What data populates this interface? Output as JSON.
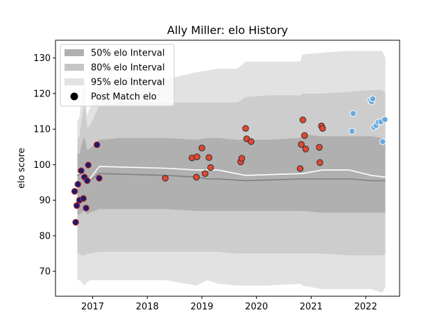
{
  "chart_data": {
    "type": "scatter",
    "title": "Ally Miller: elo History",
    "xlabel": "",
    "ylabel": "elo score",
    "xlim": [
      2016.32,
      2022.62
    ],
    "ylim": [
      63.0,
      135.0
    ],
    "x_ticks": [
      2017,
      2018,
      2019,
      2020,
      2021,
      2022
    ],
    "x_tick_labels": [
      "2017",
      "2018",
      "2019",
      "2020",
      "2021",
      "2022"
    ],
    "y_ticks": [
      70,
      80,
      90,
      100,
      110,
      120,
      130
    ],
    "y_tick_labels": [
      "70",
      "80",
      "90",
      "100",
      "110",
      "120",
      "130"
    ],
    "grid": false,
    "legend": {
      "placement": "top-left",
      "entries": [
        {
          "label": "50% elo Interval",
          "color": "#b0b0b0",
          "kind": "patch"
        },
        {
          "label": "80% elo Interval",
          "color": "#c6c6c6",
          "kind": "patch"
        },
        {
          "label": "95% elo Interval",
          "color": "#e2e2e2",
          "kind": "patch"
        },
        {
          "label": "Post Match elo",
          "color": "#000000",
          "kind": "marker"
        }
      ]
    },
    "band_x": [
      2016.72,
      2016.76,
      2016.8,
      2016.85,
      2016.9,
      2016.95,
      2017.12,
      2017.5,
      2018.34,
      2018.9,
      2019.1,
      2019.3,
      2019.65,
      2019.8,
      2020.2,
      2020.8,
      2020.84,
      2021.2,
      2021.7,
      2022.1,
      2022.3,
      2022.36
    ],
    "bands": [
      {
        "name": "95% elo Interval",
        "color": "#e2e2e2",
        "lower": [
          67.5,
          67.5,
          67.0,
          66.0,
          67.0,
          67.5,
          67.5,
          67.5,
          67.5,
          66.0,
          67.5,
          66.5,
          66.0,
          66.0,
          66.0,
          66.5,
          66.0,
          65.0,
          65.0,
          65.0,
          64.0,
          65.5
        ],
        "upper": [
          112.0,
          113.5,
          120.0,
          125.0,
          114.0,
          116.0,
          123.0,
          124.5,
          124.0,
          126.0,
          126.5,
          127.0,
          127.0,
          129.0,
          129.0,
          129.0,
          131.0,
          131.5,
          132.0,
          132.0,
          132.0,
          130.0
        ]
      },
      {
        "name": "80% elo Interval",
        "color": "#cdcdcd",
        "lower": [
          75.0,
          75.0,
          74.5,
          74.5,
          75.0,
          75.0,
          75.5,
          75.5,
          75.5,
          75.5,
          75.5,
          75.5,
          75.0,
          75.0,
          75.0,
          75.0,
          75.0,
          75.0,
          74.5,
          74.5,
          74.5,
          75.0
        ],
        "upper": [
          107.0,
          108.0,
          113.0,
          117.0,
          110.5,
          111.0,
          116.5,
          117.5,
          117.5,
          117.5,
          117.5,
          117.5,
          117.5,
          119.0,
          119.5,
          119.5,
          120.0,
          120.0,
          120.5,
          121.0,
          121.0,
          120.0
        ]
      },
      {
        "name": "50% elo Interval",
        "color": "#b0b0b0",
        "lower": [
          86.0,
          86.0,
          86.5,
          87.0,
          86.0,
          86.5,
          87.5,
          87.5,
          87.5,
          87.0,
          87.0,
          87.0,
          87.0,
          87.0,
          87.0,
          87.0,
          87.0,
          86.5,
          86.5,
          86.5,
          86.5,
          86.5
        ],
        "upper": [
          103.0,
          103.0,
          106.0,
          108.0,
          104.0,
          104.5,
          107.0,
          107.5,
          107.5,
          107.0,
          107.5,
          107.5,
          107.0,
          107.0,
          107.0,
          107.5,
          108.5,
          108.0,
          108.0,
          108.0,
          107.5,
          107.0
        ]
      }
    ],
    "lines": [
      {
        "name": "mean",
        "color": "#808080",
        "width": 1.6,
        "x": [
          2016.72,
          2016.8,
          2016.85,
          2016.95,
          2017.12,
          2018.34,
          2018.9,
          2019.1,
          2019.3,
          2019.8,
          2020.84,
          2021.2,
          2021.7,
          2022.1,
          2022.36
        ],
        "y": [
          97.0,
          97.5,
          96.0,
          95.5,
          97.5,
          97.0,
          96.5,
          96.0,
          96.0,
          95.5,
          96.0,
          96.0,
          96.0,
          95.5,
          95.5
        ]
      },
      {
        "name": "median",
        "color": "#ffffff",
        "width": 1.6,
        "x": [
          2016.72,
          2016.8,
          2016.85,
          2016.95,
          2017.12,
          2018.34,
          2018.9,
          2019.1,
          2019.3,
          2019.8,
          2020.84,
          2021.2,
          2021.7,
          2022.1,
          2022.36
        ],
        "y": [
          97.5,
          97.5,
          96.5,
          96.0,
          99.5,
          99.0,
          98.5,
          98.5,
          98.5,
          97.0,
          97.5,
          98.5,
          98.5,
          97.0,
          96.5
        ]
      }
    ],
    "series": [
      {
        "group": 1,
        "fill": "#1c1c6e",
        "edge": "#c82828",
        "x": [
          2016.67,
          2016.69,
          2016.71,
          2016.73,
          2016.76,
          2016.79,
          2016.83,
          2016.85,
          2016.88,
          2016.9,
          2016.92,
          2017.08,
          2017.12
        ],
        "y": [
          92.5,
          83.8,
          88.5,
          94.5,
          90.0,
          98.3,
          90.5,
          96.5,
          87.8,
          95.5,
          99.9,
          105.6,
          96.2
        ]
      },
      {
        "group": 2,
        "fill": "#e04830",
        "edge": "#303030",
        "x": [
          2018.33,
          2018.82,
          2018.9,
          2018.91,
          2019.0,
          2019.06,
          2019.13,
          2019.16,
          2019.71,
          2019.73,
          2019.8,
          2019.82,
          2019.9,
          2020.8,
          2020.82,
          2020.85,
          2020.88,
          2020.9,
          2021.15,
          2021.16,
          2021.19,
          2021.21
        ],
        "y": [
          96.2,
          101.9,
          96.5,
          102.2,
          104.7,
          97.5,
          102.0,
          99.2,
          100.8,
          101.8,
          110.2,
          107.3,
          106.5,
          98.9,
          105.7,
          112.6,
          108.2,
          104.4,
          104.9,
          100.6,
          110.9,
          110.2
        ]
      },
      {
        "group": 3,
        "fill": "#6aa8dc",
        "edge": "#ffffff",
        "x": [
          2021.75,
          2021.77,
          2022.08,
          2022.11,
          2022.13,
          2022.15,
          2022.19,
          2022.23,
          2022.28,
          2022.31,
          2022.35
        ],
        "y": [
          109.4,
          114.4,
          118.0,
          117.7,
          118.5,
          110.5,
          111.0,
          112.0,
          112.1,
          106.5,
          112.7
        ]
      }
    ]
  }
}
